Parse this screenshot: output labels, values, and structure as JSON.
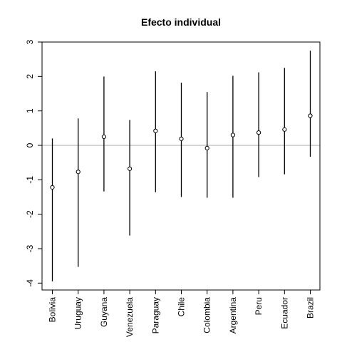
{
  "chart_data": {
    "type": "scatter",
    "title": "Efecto individual",
    "xlabel": "",
    "ylabel": "",
    "categories": [
      "Bolivia",
      "Uruguay",
      "Guyana",
      "Venezuela",
      "Paraguay",
      "Chile",
      "Colombia",
      "Argentina",
      "Peru",
      "Ecuador",
      "Brazil"
    ],
    "estimates": [
      -1.22,
      -0.77,
      0.25,
      -0.68,
      0.42,
      0.19,
      -0.08,
      0.3,
      0.37,
      0.46,
      0.86
    ],
    "lower": [
      -3.95,
      -3.53,
      -1.34,
      -2.62,
      -1.36,
      -1.5,
      -1.52,
      -1.52,
      -0.92,
      -0.84,
      -0.33
    ],
    "upper": [
      0.2,
      0.78,
      2.0,
      0.74,
      2.15,
      1.82,
      1.55,
      2.02,
      2.12,
      2.25,
      2.75
    ],
    "ylim": [
      -4.2,
      3.0
    ],
    "yticks": [
      -4,
      -3,
      -2,
      -1,
      0,
      1,
      2,
      3
    ],
    "reference_line": 0,
    "grid": false,
    "colors": {
      "points": "#000000",
      "reference_line": "#aaaaaa",
      "axes": "#000000"
    }
  }
}
